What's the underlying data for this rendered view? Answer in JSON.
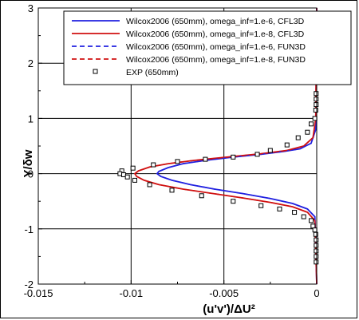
{
  "chart_data": {
    "type": "line",
    "xlabel": "(u'v')/ΔU²",
    "ylabel": "Y/δw",
    "xlim": [
      -0.015,
      0
    ],
    "ylim": [
      -2,
      3
    ],
    "xticks": [
      "-0.015",
      "-0.01",
      "-0.005",
      "0"
    ],
    "yticks": [
      "-2",
      "-1",
      "0",
      "1",
      "2",
      "3"
    ],
    "grid": true,
    "legend_position": "top",
    "series": [
      {
        "name": "Wilcox2006 (650mm), omega_inf=1.e-6, CFL3D",
        "color": "#2020e0",
        "style": "solid",
        "x": [
          0,
          -5e-05,
          -0.0003,
          -0.0009,
          -0.0018,
          -0.003,
          -0.0045,
          -0.006,
          -0.0072,
          -0.008,
          -0.0085,
          -0.0086,
          -0.0084,
          -0.0078,
          -0.0068,
          -0.0055,
          -0.004,
          -0.0025,
          -0.0013,
          -0.0005,
          -0.0001,
          0
        ],
        "y": [
          3.0,
          0.8,
          0.55,
          0.45,
          0.4,
          0.35,
          0.3,
          0.24,
          0.18,
          0.11,
          0.04,
          0.0,
          -0.05,
          -0.12,
          -0.2,
          -0.28,
          -0.36,
          -0.45,
          -0.54,
          -0.64,
          -0.78,
          -2.0
        ]
      },
      {
        "name": "Wilcox2006 (650mm), omega_inf=1.e-8, CFL3D",
        "color": "#d01010",
        "style": "solid",
        "x": [
          0,
          -5e-05,
          -0.0002,
          -0.0007,
          -0.0016,
          -0.003,
          -0.0048,
          -0.0066,
          -0.008,
          -0.009,
          -0.0096,
          -0.0098,
          -0.0097,
          -0.0093,
          -0.0085,
          -0.0072,
          -0.0056,
          -0.004,
          -0.0025,
          -0.0013,
          -0.0005,
          -0.0001,
          0
        ],
        "y": [
          3.0,
          1.0,
          0.65,
          0.5,
          0.42,
          0.36,
          0.3,
          0.24,
          0.18,
          0.12,
          0.05,
          0.0,
          -0.05,
          -0.12,
          -0.2,
          -0.28,
          -0.36,
          -0.44,
          -0.52,
          -0.6,
          -0.7,
          -0.85,
          -2.0
        ]
      },
      {
        "name": "Wilcox2006 (650mm), omega_inf=1.e-6, FUN3D",
        "color": "#2020e0",
        "style": "dashed",
        "x": [
          0,
          -5e-05,
          -0.0003,
          -0.0009,
          -0.0018,
          -0.003,
          -0.0045,
          -0.006,
          -0.0072,
          -0.008,
          -0.0085,
          -0.0086,
          -0.0084,
          -0.0078,
          -0.0068,
          -0.0055,
          -0.004,
          -0.0025,
          -0.0013,
          -0.0005,
          -0.0001,
          0
        ],
        "y": [
          3.0,
          0.8,
          0.55,
          0.45,
          0.4,
          0.35,
          0.3,
          0.24,
          0.18,
          0.11,
          0.04,
          0.0,
          -0.05,
          -0.12,
          -0.2,
          -0.28,
          -0.36,
          -0.45,
          -0.54,
          -0.64,
          -0.78,
          -2.0
        ]
      },
      {
        "name": "Wilcox2006 (650mm), omega_inf=1.e-8, FUN3D",
        "color": "#d01010",
        "style": "dashed",
        "x": [
          0,
          -5e-05,
          -0.0002,
          -0.0007,
          -0.0016,
          -0.003,
          -0.0048,
          -0.0066,
          -0.008,
          -0.009,
          -0.0096,
          -0.0098,
          -0.0097,
          -0.0093,
          -0.0085,
          -0.0072,
          -0.0056,
          -0.004,
          -0.0025,
          -0.0013,
          -0.0005,
          -0.0001,
          0
        ],
        "y": [
          3.0,
          1.0,
          0.65,
          0.5,
          0.42,
          0.36,
          0.3,
          0.24,
          0.18,
          0.12,
          0.05,
          0.0,
          -0.05,
          -0.12,
          -0.2,
          -0.28,
          -0.36,
          -0.44,
          -0.52,
          -0.6,
          -0.7,
          -0.85,
          -2.0
        ]
      },
      {
        "name": "EXP (650mm)",
        "color": "#000000",
        "style": "markers",
        "x": [
          -3e-05,
          -3e-05,
          -3e-05,
          -5e-05,
          -0.0001,
          -0.0003,
          -0.0005,
          -0.001,
          -0.0016,
          -0.0025,
          -0.0032,
          -0.0045,
          -0.006,
          -0.0075,
          -0.0088,
          -0.0099,
          -0.0105,
          -0.0106,
          -0.0104,
          -0.0102,
          -0.0098,
          -0.009,
          -0.0078,
          -0.0062,
          -0.0045,
          -0.003,
          -0.002,
          -0.0012,
          -0.0007,
          -0.0003,
          -0.0002,
          -0.0001,
          -5e-05,
          -3e-05,
          -3e-05,
          -3e-05,
          -3e-05,
          -3e-05
        ],
        "y": [
          1.45,
          1.35,
          1.25,
          1.15,
          1.0,
          0.9,
          0.75,
          0.65,
          0.52,
          0.42,
          0.35,
          0.3,
          0.26,
          0.22,
          0.16,
          0.1,
          0.05,
          0.0,
          -0.02,
          -0.06,
          -0.12,
          -0.2,
          -0.3,
          -0.4,
          -0.5,
          -0.58,
          -0.64,
          -0.7,
          -0.78,
          -0.85,
          -0.95,
          -1.02,
          -1.1,
          -1.2,
          -1.3,
          -1.4,
          -1.5,
          -1.6
        ]
      }
    ]
  }
}
